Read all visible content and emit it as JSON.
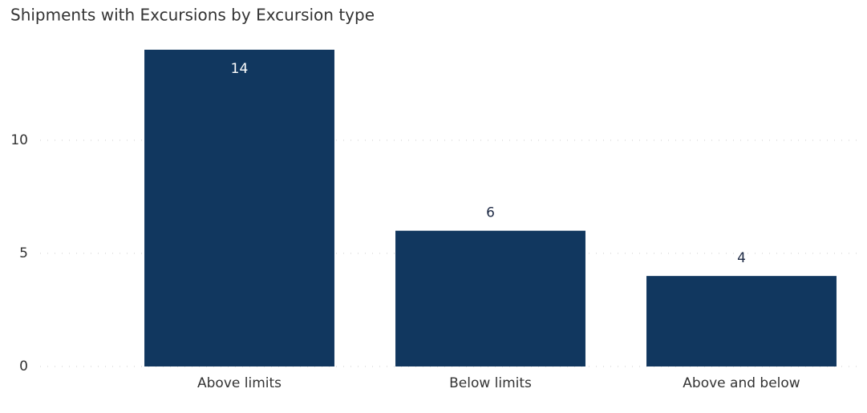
{
  "chart_data": {
    "type": "bar",
    "title": "Shipments with Excursions by Excursion type",
    "categories": [
      "Above limits",
      "Below limits",
      "Above and below"
    ],
    "values": [
      14,
      6,
      4
    ],
    "color": "#11375f",
    "ylim": [
      0,
      14
    ],
    "yticks": [
      0,
      5,
      10
    ],
    "grid": true
  }
}
